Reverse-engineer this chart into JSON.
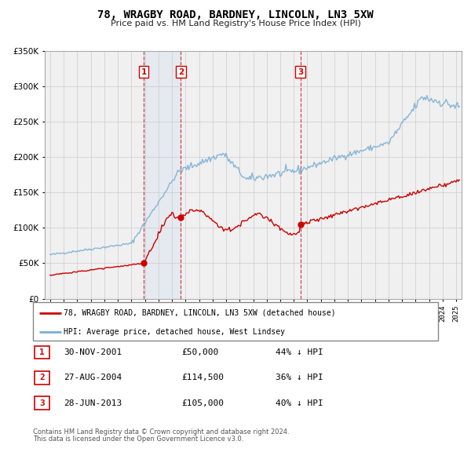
{
  "title": "78, WRAGBY ROAD, BARDNEY, LINCOLN, LN3 5XW",
  "subtitle": "Price paid vs. HM Land Registry's House Price Index (HPI)",
  "legend_property": "78, WRAGBY ROAD, BARDNEY, LINCOLN, LN3 5XW (detached house)",
  "legend_hpi": "HPI: Average price, detached house, West Lindsey",
  "footer1": "Contains HM Land Registry data © Crown copyright and database right 2024.",
  "footer2": "This data is licensed under the Open Government Licence v3.0.",
  "transactions": [
    {
      "id": 1,
      "date": "30-NOV-2001",
      "date_num": 2001.917,
      "price": 50000,
      "pct": "44%",
      "arrow": "↓"
    },
    {
      "id": 2,
      "date": "27-AUG-2004",
      "date_num": 2004.653,
      "price": 114500,
      "pct": "36%",
      "arrow": "↓"
    },
    {
      "id": 3,
      "date": "28-JUN-2013",
      "date_num": 2013.49,
      "price": 105000,
      "pct": "40%",
      "arrow": "↓"
    }
  ],
  "property_color": "#cc0000",
  "hpi_color": "#7bafd4",
  "shading_color": "#ddeeff",
  "vline_color": "#cc3333",
  "ylim": [
    0,
    350000
  ],
  "yticks": [
    0,
    50000,
    100000,
    150000,
    200000,
    250000,
    300000,
    350000
  ],
  "xlim_start": 1994.6,
  "xlim_end": 2025.4,
  "plot_bg_color": "#f0f0f0"
}
